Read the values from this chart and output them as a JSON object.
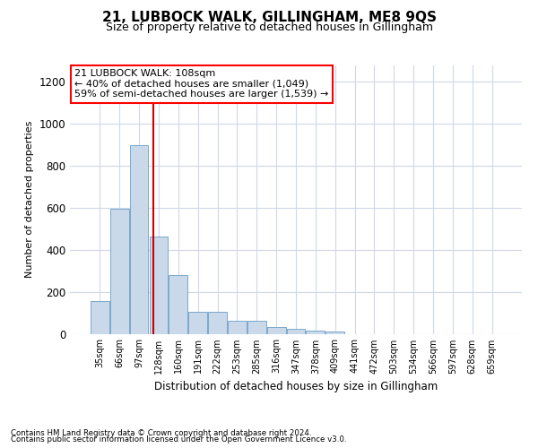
{
  "title": "21, LUBBOCK WALK, GILLINGHAM, ME8 9QS",
  "subtitle": "Size of property relative to detached houses in Gillingham",
  "xlabel": "Distribution of detached houses by size in Gillingham",
  "ylabel": "Number of detached properties",
  "footnote1": "Contains HM Land Registry data © Crown copyright and database right 2024.",
  "footnote2": "Contains public sector information licensed under the Open Government Licence v3.0.",
  "annotation_line1": "21 LUBBOCK WALK: 108sqm",
  "annotation_line2": "← 40% of detached houses are smaller (1,049)",
  "annotation_line3": "59% of semi-detached houses are larger (1,539) →",
  "bar_color": "#c9d9ea",
  "bar_edge_color": "#7aa8cc",
  "red_line_color": "#cc0000",
  "categories": [
    "35sqm",
    "66sqm",
    "97sqm",
    "128sqm",
    "160sqm",
    "191sqm",
    "222sqm",
    "253sqm",
    "285sqm",
    "316sqm",
    "347sqm",
    "378sqm",
    "409sqm",
    "441sqm",
    "472sqm",
    "503sqm",
    "534sqm",
    "566sqm",
    "597sqm",
    "628sqm",
    "659sqm"
  ],
  "values": [
    155,
    595,
    900,
    465,
    280,
    105,
    105,
    60,
    60,
    30,
    25,
    15,
    10,
    0,
    0,
    0,
    0,
    0,
    0,
    0,
    0
  ],
  "red_line_x": 2.73,
  "ylim": [
    0,
    1280
  ],
  "yticks": [
    0,
    200,
    400,
    600,
    800,
    1000,
    1200
  ],
  "background_color": "#ffffff",
  "grid_color": "#d0d8e8"
}
